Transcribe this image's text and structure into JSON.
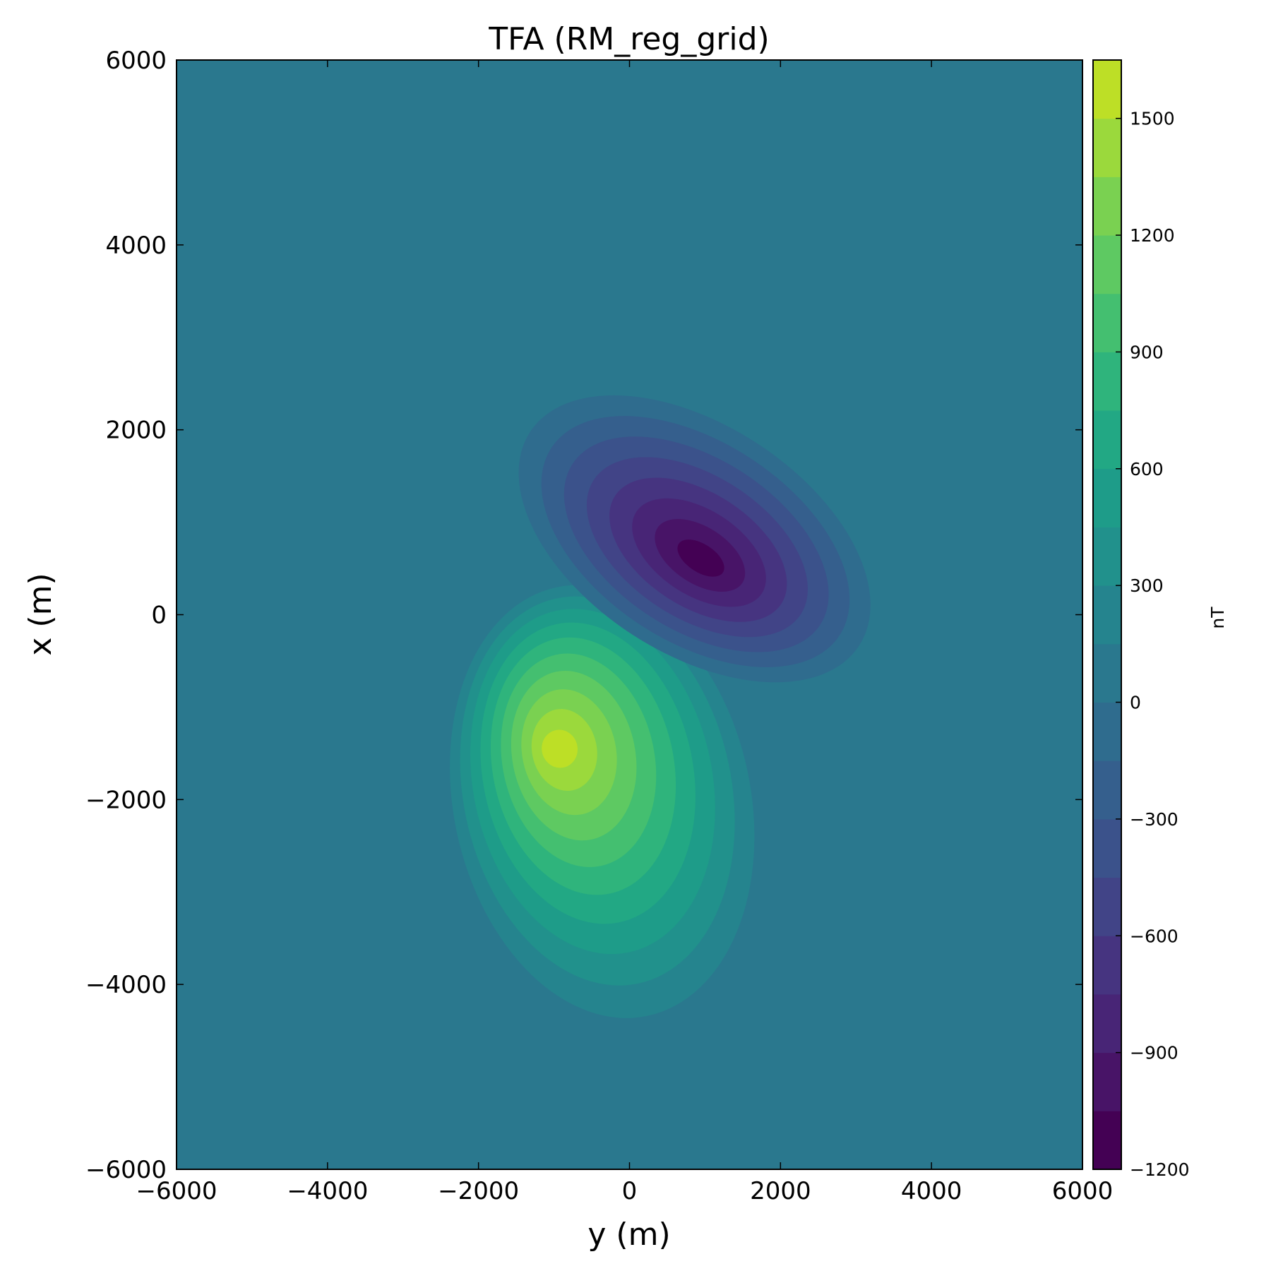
{
  "chart_data": {
    "type": "contourf",
    "title": "TFA (RM_reg_grid)",
    "xlabel": "y (m)",
    "ylabel": "x (m)",
    "xlim": [
      -6000,
      6000
    ],
    "ylim": [
      -6000,
      6000
    ],
    "xticks": [
      -6000,
      -4000,
      -2000,
      0,
      2000,
      4000,
      6000
    ],
    "yticks": [
      -6000,
      -4000,
      -2000,
      0,
      2000,
      4000,
      6000
    ],
    "xtick_labels": [
      "−6000",
      "−4000",
      "−2000",
      "0",
      "2000",
      "4000",
      "6000"
    ],
    "ytick_labels": [
      "−6000",
      "−4000",
      "−2000",
      "0",
      "2000",
      "4000",
      "6000"
    ],
    "colormap": "viridis",
    "grid": false,
    "colorbar": {
      "label": "nT",
      "range": [
        -1200,
        1650
      ],
      "ticks": [
        -1200,
        -900,
        -600,
        -300,
        0,
        300,
        600,
        900,
        1200,
        1500
      ],
      "tick_labels": [
        "−1200",
        "−900",
        "−600",
        "−300",
        "0",
        "300",
        "600",
        "900",
        "1200",
        "1500"
      ],
      "levels": [
        -1200,
        -1050,
        -900,
        -750,
        -600,
        -450,
        -300,
        -150,
        0,
        150,
        300,
        450,
        600,
        750,
        900,
        1050,
        1200,
        1350,
        1500,
        1650
      ],
      "colors": [
        "#440154",
        "#481467",
        "#482576",
        "#463480",
        "#414487",
        "#3b528b",
        "#355f8d",
        "#2f6c8e",
        "#2a788e",
        "#25848e",
        "#21918c",
        "#1e9c89",
        "#22a884",
        "#2fb47c",
        "#44bf70",
        "#5ec962",
        "#7ad151",
        "#9bd93c",
        "#bddf26",
        "#dfe318"
      ]
    },
    "anomalies": [
      {
        "sign": "positive",
        "center": {
          "y": -950,
          "x": -1450
        },
        "peak": 1500
      },
      {
        "sign": "negative",
        "center": {
          "y": 950,
          "x": 600
        },
        "peak": -1200
      }
    ]
  }
}
